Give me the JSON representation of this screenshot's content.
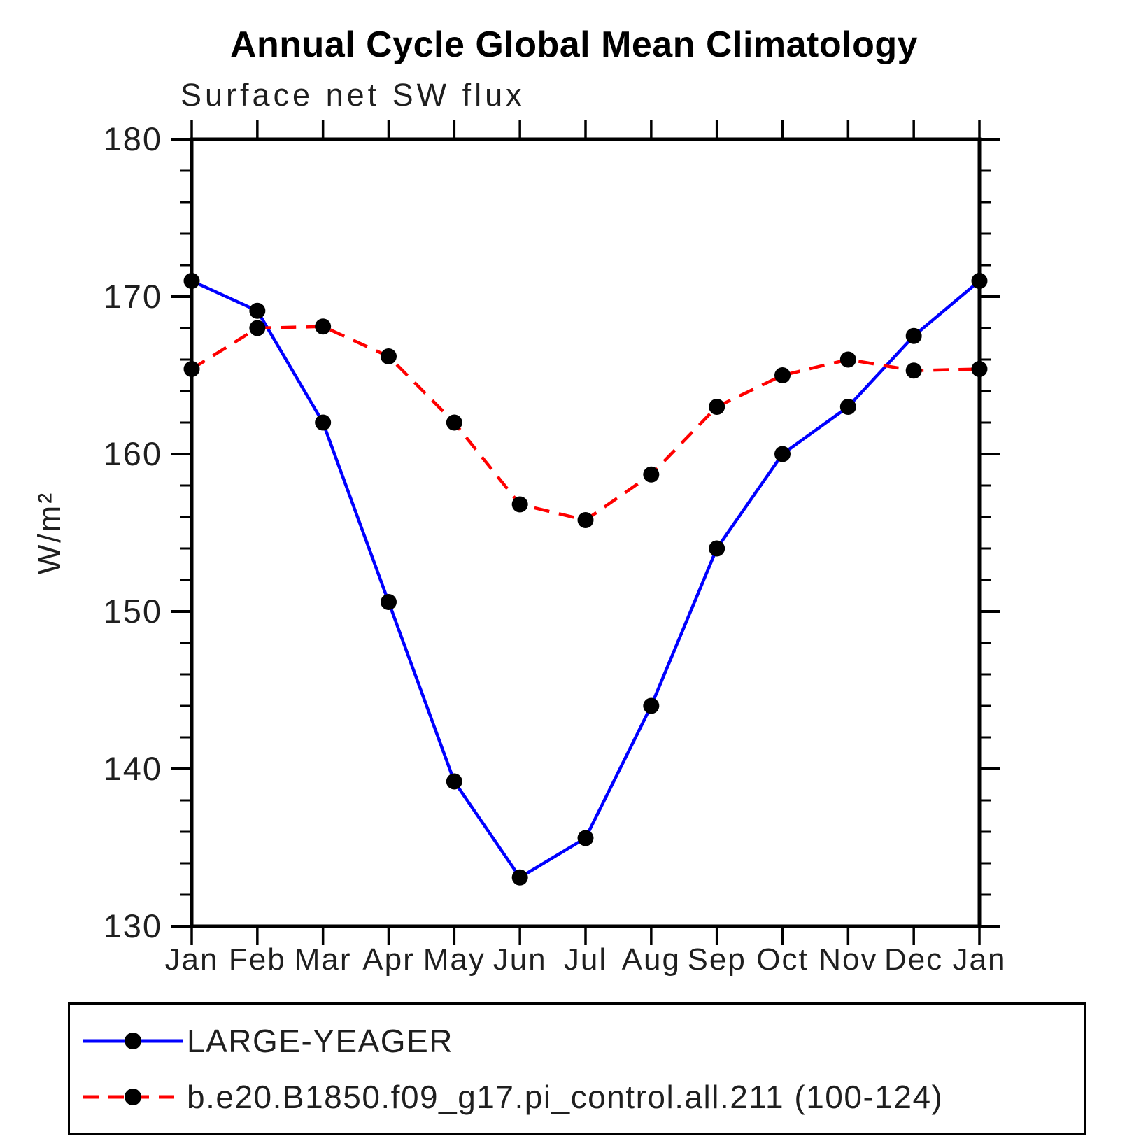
{
  "header": {
    "title": "Annual Cycle Global Mean Climatology",
    "subtitle": "Surface net SW flux"
  },
  "chart_data": {
    "type": "line",
    "title": "Annual Cycle Global Mean Climatology",
    "subtitle": "Surface net SW flux",
    "xlabel": "",
    "ylabel": "W/m²",
    "ylim": [
      130,
      180
    ],
    "ytick_major": [
      130,
      140,
      150,
      160,
      170,
      180
    ],
    "ytick_minor_step": 2,
    "grid": false,
    "tick_style": "outward, all four sides boxed",
    "legend_position": "bottom-left box",
    "x_categories": [
      "Jan",
      "Feb",
      "Mar",
      "Apr",
      "May",
      "Jun",
      "Jul",
      "Aug",
      "Sep",
      "Oct",
      "Nov",
      "Dec",
      "Jan"
    ],
    "series": [
      {
        "name": "LARGE-YEAGER",
        "color": "#0000ff",
        "line_style": "solid",
        "marker": "circle",
        "marker_color": "#000000",
        "values": [
          171.0,
          169.1,
          162.0,
          150.6,
          139.2,
          133.1,
          135.6,
          144.0,
          154.0,
          160.0,
          163.0,
          167.5,
          171.0
        ]
      },
      {
        "name": "b.e20.B1850.f09_g17.pi_control.all.211 (100-124)",
        "color": "#ff0000",
        "line_style": "dashed",
        "marker": "circle",
        "marker_color": "#000000",
        "values": [
          165.4,
          168.0,
          168.1,
          166.2,
          162.0,
          156.8,
          155.8,
          158.7,
          163.0,
          165.0,
          166.0,
          165.3,
          165.4
        ]
      }
    ]
  }
}
